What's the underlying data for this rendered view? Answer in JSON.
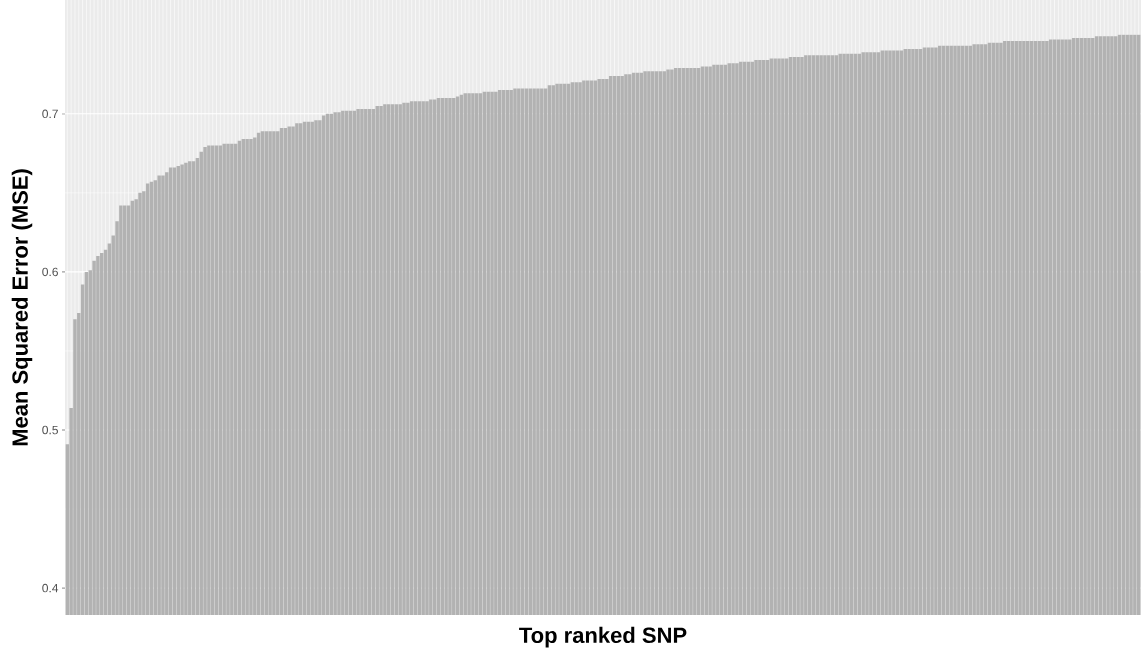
{
  "chart_data": {
    "type": "bar",
    "xlabel": "Top ranked SNP",
    "ylabel": "Mean Squared Error (MSE)",
    "categories": [
      null,
      null,
      null,
      null,
      null,
      null,
      null,
      null,
      null,
      null,
      null,
      null,
      null,
      null,
      null,
      null,
      null,
      null,
      null,
      null,
      null,
      null,
      null,
      null,
      null,
      null,
      null,
      null,
      null,
      null,
      null,
      null,
      null,
      null,
      null,
      null,
      null,
      null,
      null,
      null,
      null,
      null,
      null,
      null,
      null,
      null,
      null,
      null,
      null,
      null,
      null,
      null,
      null,
      null,
      null,
      null,
      null,
      null,
      null,
      null,
      null,
      null,
      null,
      null,
      null,
      null,
      null,
      null,
      null,
      null,
      null,
      null,
      null,
      null,
      null,
      null,
      null,
      null,
      null,
      null,
      null,
      null,
      null,
      null,
      null,
      null,
      null,
      null,
      null,
      null,
      null,
      null,
      null,
      null,
      null,
      null,
      null,
      null,
      null,
      null,
      null,
      null,
      null,
      null,
      null,
      null,
      null,
      null,
      null,
      null,
      null,
      null,
      null,
      null,
      null,
      null,
      null,
      null,
      null,
      null,
      null,
      null,
      null,
      null,
      null,
      null,
      null,
      null,
      null,
      null,
      null,
      null,
      null,
      null,
      null,
      null,
      null,
      null,
      null,
      null,
      null,
      null,
      null,
      null,
      null,
      null,
      null,
      null,
      null,
      null,
      null,
      null,
      null,
      null,
      null,
      null,
      null,
      null,
      null,
      null,
      null,
      null,
      null,
      null,
      null,
      null,
      null,
      null,
      null,
      null,
      null,
      null,
      null,
      null,
      null,
      null,
      null,
      null,
      null,
      null,
      null,
      null,
      null,
      null,
      null,
      null,
      null,
      null,
      null,
      null,
      null,
      null,
      null,
      null,
      null,
      null,
      null,
      null,
      null,
      null,
      null,
      null,
      null,
      null,
      null,
      null,
      null,
      null,
      null,
      null,
      null,
      null,
      null,
      null,
      null,
      null,
      null,
      null,
      null,
      null,
      null,
      null,
      null,
      null,
      null,
      null,
      null,
      null,
      null,
      null,
      null,
      null,
      null,
      null,
      null,
      null,
      null,
      null,
      null,
      null,
      null,
      null,
      null,
      null,
      null,
      null,
      null,
      null,
      null,
      null,
      null,
      null,
      null,
      null,
      null,
      null,
      null,
      null,
      null,
      null,
      null,
      null,
      null,
      null,
      null,
      null,
      null,
      null,
      null,
      null,
      null,
      null,
      null,
      null,
      null,
      null,
      null,
      null,
      null,
      null,
      null
    ],
    "values": [
      0.491,
      0.514,
      0.57,
      0.574,
      0.592,
      0.6,
      0.601,
      0.607,
      0.61,
      0.612,
      0.614,
      0.618,
      0.623,
      0.632,
      0.642,
      0.642,
      0.642,
      0.645,
      0.646,
      0.65,
      0.651,
      0.656,
      0.657,
      0.658,
      0.661,
      0.661,
      0.663,
      0.666,
      0.666,
      0.667,
      0.668,
      0.669,
      0.67,
      0.67,
      0.672,
      0.676,
      0.679,
      0.68,
      0.68,
      0.68,
      0.68,
      0.681,
      0.681,
      0.681,
      0.681,
      0.683,
      0.684,
      0.684,
      0.684,
      0.685,
      0.688,
      0.689,
      0.689,
      0.689,
      0.689,
      0.689,
      0.691,
      0.691,
      0.692,
      0.692,
      0.694,
      0.694,
      0.695,
      0.695,
      0.695,
      0.696,
      0.696,
      0.699,
      0.7,
      0.7,
      0.701,
      0.701,
      0.702,
      0.702,
      0.702,
      0.702,
      0.703,
      0.703,
      0.703,
      0.703,
      0.703,
      0.705,
      0.705,
      0.706,
      0.706,
      0.706,
      0.706,
      0.706,
      0.707,
      0.707,
      0.708,
      0.708,
      0.708,
      0.708,
      0.708,
      0.709,
      0.709,
      0.71,
      0.71,
      0.71,
      0.71,
      0.71,
      0.711,
      0.712,
      0.713,
      0.713,
      0.713,
      0.713,
      0.713,
      0.714,
      0.714,
      0.714,
      0.714,
      0.715,
      0.715,
      0.715,
      0.715,
      0.716,
      0.716,
      0.716,
      0.716,
      0.716,
      0.716,
      0.716,
      0.716,
      0.716,
      0.718,
      0.718,
      0.719,
      0.719,
      0.719,
      0.719,
      0.72,
      0.72,
      0.72,
      0.721,
      0.721,
      0.721,
      0.721,
      0.722,
      0.722,
      0.722,
      0.724,
      0.724,
      0.724,
      0.724,
      0.725,
      0.725,
      0.726,
      0.726,
      0.726,
      0.727,
      0.727,
      0.727,
      0.727,
      0.727,
      0.727,
      0.728,
      0.728,
      0.729,
      0.729,
      0.729,
      0.729,
      0.729,
      0.729,
      0.729,
      0.73,
      0.73,
      0.73,
      0.731,
      0.731,
      0.731,
      0.731,
      0.732,
      0.732,
      0.732,
      0.733,
      0.733,
      0.733,
      0.733,
      0.734,
      0.734,
      0.734,
      0.734,
      0.735,
      0.735,
      0.735,
      0.735,
      0.735,
      0.736,
      0.736,
      0.736,
      0.736,
      0.737,
      0.737,
      0.737,
      0.737,
      0.737,
      0.737,
      0.737,
      0.737,
      0.737,
      0.738,
      0.738,
      0.738,
      0.738,
      0.738,
      0.738,
      0.739,
      0.739,
      0.739,
      0.739,
      0.739,
      0.74,
      0.74,
      0.74,
      0.74,
      0.74,
      0.74,
      0.741,
      0.741,
      0.741,
      0.741,
      0.741,
      0.742,
      0.742,
      0.742,
      0.742,
      0.743,
      0.743,
      0.743,
      0.743,
      0.743,
      0.743,
      0.743,
      0.743,
      0.743,
      0.744,
      0.744,
      0.744,
      0.744,
      0.745,
      0.745,
      0.745,
      0.745,
      0.746,
      0.746,
      0.746,
      0.746,
      0.746,
      0.746,
      0.746,
      0.746,
      0.746,
      0.746,
      0.746,
      0.746,
      0.747,
      0.747,
      0.747,
      0.747,
      0.747,
      0.747,
      0.748,
      0.748,
      0.748,
      0.748,
      0.748,
      0.748,
      0.749,
      0.749,
      0.749,
      0.749,
      0.749,
      0.749,
      0.75,
      0.75,
      0.75,
      0.75,
      0.75,
      0.75
    ],
    "color": "#b2b2b2",
    "ylim": [
      0.383,
      0.772
    ],
    "yticks": [
      0.4,
      0.5,
      0.6,
      0.7
    ],
    "grid": true,
    "tick_labels": "y"
  }
}
